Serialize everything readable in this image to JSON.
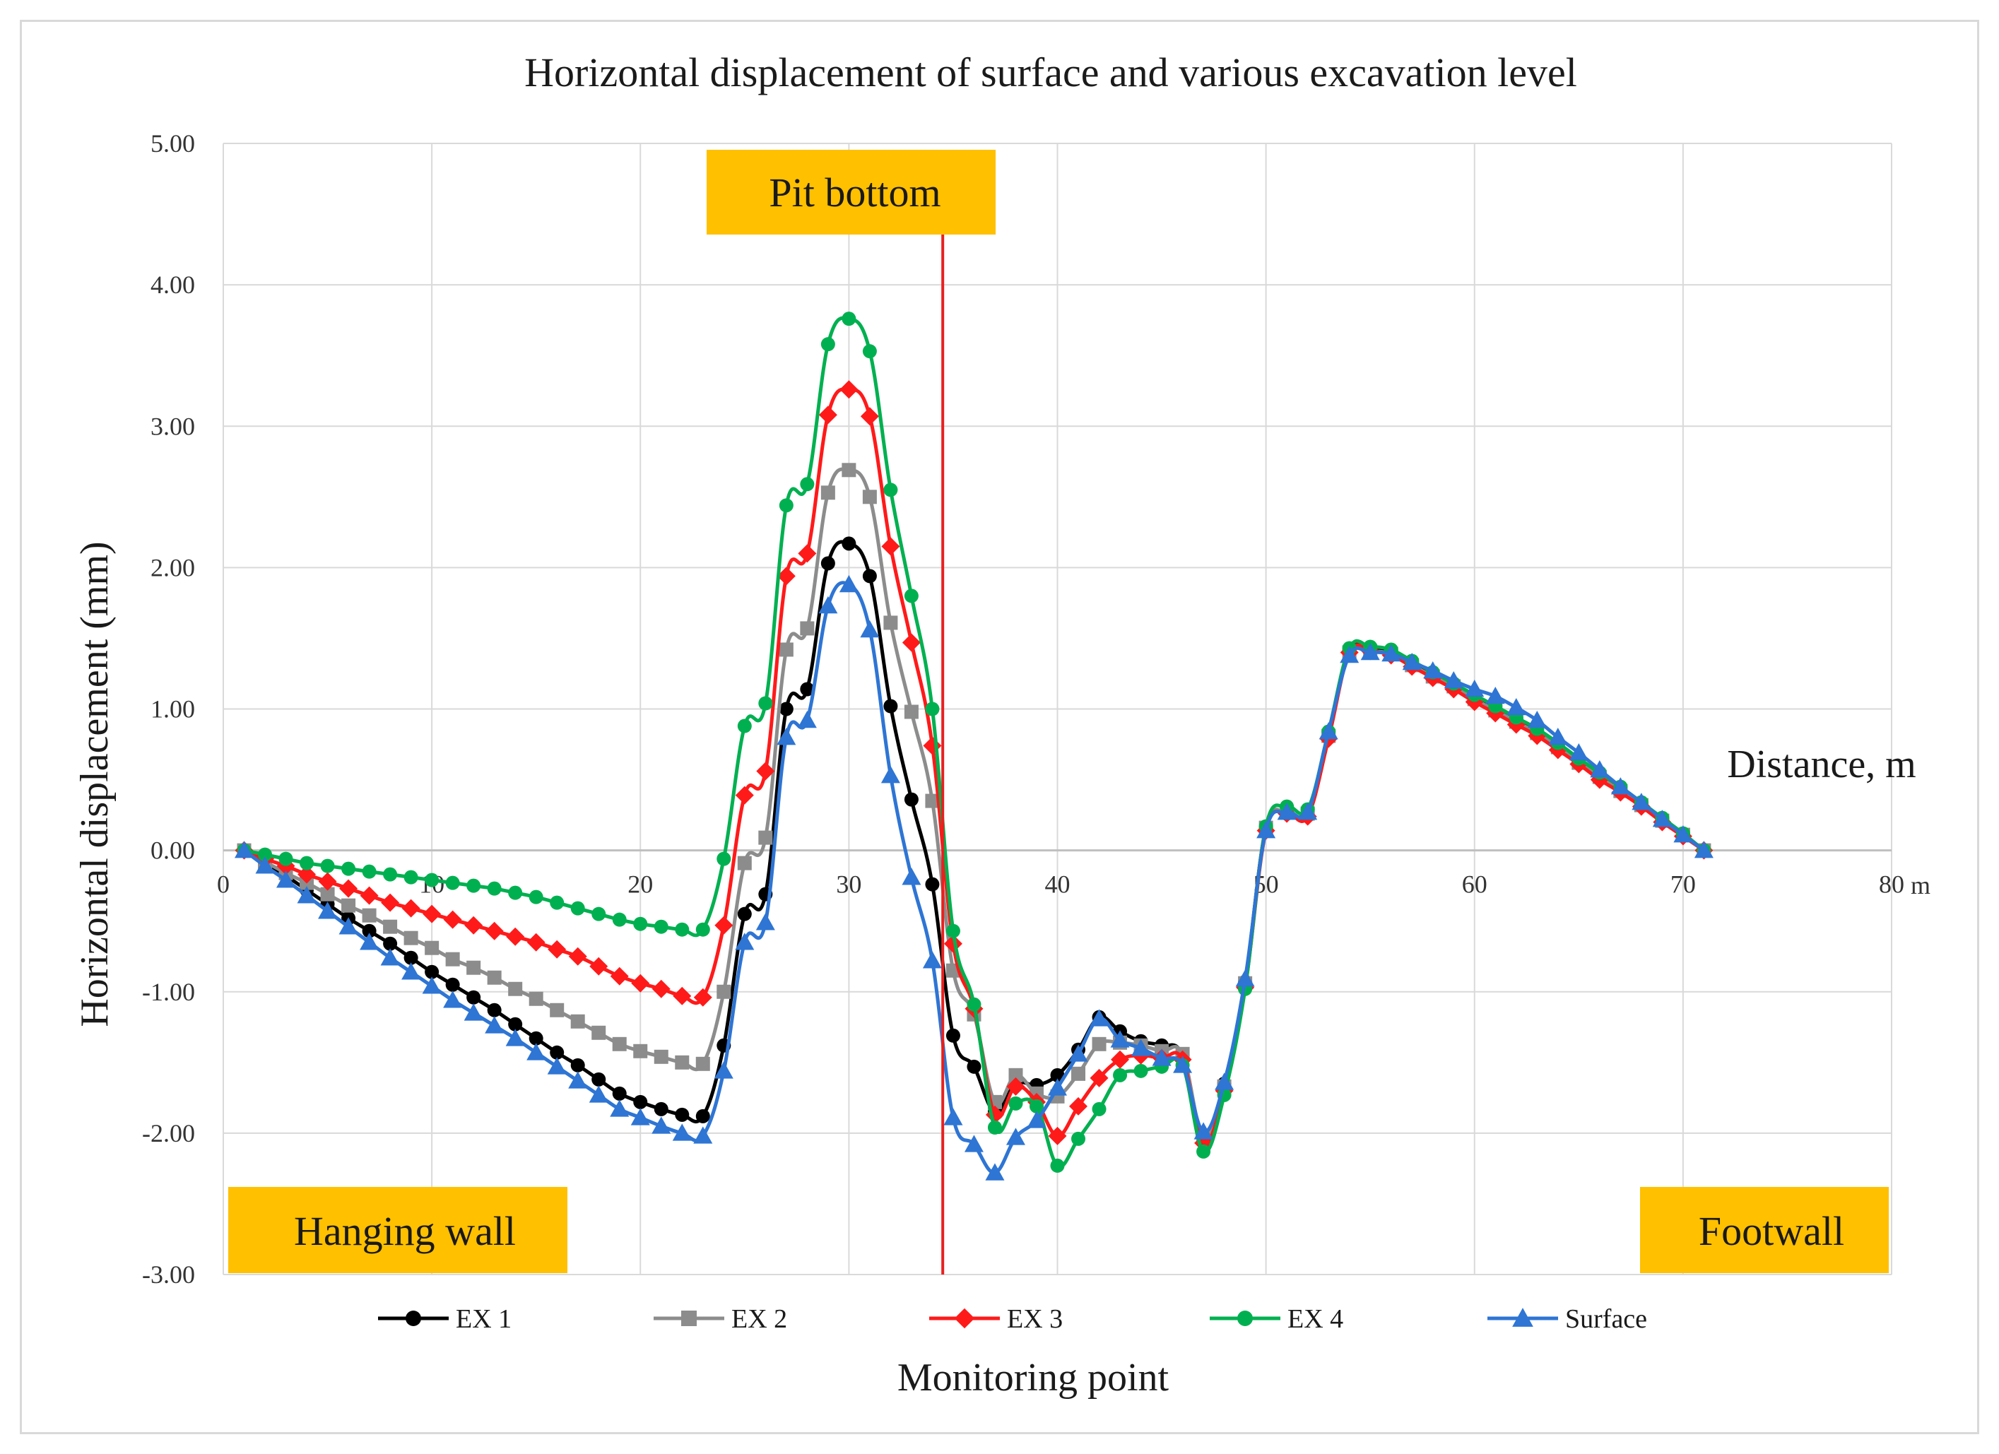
{
  "chart_data": {
    "type": "line",
    "title": "Horizontal displacement of surface and various excavation level",
    "xlabel": "Monitoring point",
    "ylabel": "Horizontal displacement (mm)",
    "x_axis_annotation": "Distance, m",
    "x_unit_label": "m",
    "xlim": [
      0,
      80
    ],
    "ylim": [
      -3,
      5
    ],
    "x_ticks": [
      0,
      10,
      20,
      30,
      40,
      50,
      60,
      70,
      80
    ],
    "x_tick_labels": [
      "0",
      "10",
      "20",
      "30",
      "40",
      "50",
      "60",
      "70",
      "80"
    ],
    "y_ticks": [
      5,
      4,
      3,
      2,
      1,
      0,
      -1,
      -2,
      -3
    ],
    "y_tick_labels": [
      "5.00",
      "4.00",
      "3.00",
      "2.00",
      "1.00",
      "0.00",
      "-1.00",
      "-2.00",
      "-3.00"
    ],
    "grid": true,
    "legend_position": "bottom",
    "annotations": {
      "pit_bottom": {
        "text": "Pit bottom",
        "x": 34.5,
        "line_color": "#e8211f",
        "box_color": "#ffc000"
      },
      "hanging_wall": {
        "text": "Hanging wall",
        "box_color": "#ffc000"
      },
      "footwall": {
        "text": "Footwall",
        "box_color": "#ffc000"
      }
    },
    "x": [
      1,
      2,
      3,
      4,
      5,
      6,
      7,
      8,
      9,
      10,
      11,
      12,
      13,
      14,
      15,
      16,
      17,
      18,
      19,
      20,
      21,
      22,
      23,
      24,
      25,
      26,
      27,
      28,
      29,
      30,
      31,
      32,
      33,
      34,
      35,
      36,
      37,
      38,
      39,
      40,
      41,
      42,
      43,
      44,
      45,
      46,
      47,
      48,
      49,
      50,
      51,
      52,
      53,
      54,
      55,
      56,
      57,
      58,
      59,
      60,
      61,
      62,
      63,
      64,
      65,
      66,
      67,
      68,
      69,
      70,
      71
    ],
    "series": [
      {
        "name": "EX 1",
        "color": "#000000",
        "marker": "circle",
        "values": [
          0.0,
          -0.09,
          -0.18,
          -0.28,
          -0.38,
          -0.48,
          -0.57,
          -0.66,
          -0.76,
          -0.86,
          -0.95,
          -1.04,
          -1.13,
          -1.23,
          -1.33,
          -1.43,
          -1.52,
          -1.62,
          -1.72,
          -1.78,
          -1.83,
          -1.87,
          -1.88,
          -1.38,
          -0.45,
          -0.31,
          1.0,
          1.14,
          2.03,
          2.17,
          1.94,
          1.02,
          0.36,
          -0.24,
          -1.31,
          -1.53,
          -1.85,
          -1.65,
          -1.66,
          -1.59,
          -1.41,
          -1.18,
          -1.28,
          -1.35,
          -1.38,
          -1.45,
          -2.06,
          -1.65,
          -0.93,
          0.16,
          0.26,
          0.25,
          0.81,
          1.42,
          1.43,
          1.41,
          1.33,
          1.25,
          1.17,
          1.09,
          1.0,
          0.93,
          0.84,
          0.74,
          0.63,
          0.53,
          0.43,
          0.33,
          0.22,
          0.11,
          0.0
        ]
      },
      {
        "name": "EX 2",
        "color": "#8c8c8c",
        "marker": "square",
        "values": [
          0.0,
          -0.08,
          -0.16,
          -0.23,
          -0.31,
          -0.39,
          -0.46,
          -0.54,
          -0.62,
          -0.69,
          -0.77,
          -0.83,
          -0.9,
          -0.98,
          -1.05,
          -1.13,
          -1.21,
          -1.29,
          -1.37,
          -1.42,
          -1.46,
          -1.5,
          -1.51,
          -1.0,
          -0.09,
          0.09,
          1.42,
          1.57,
          2.53,
          2.69,
          2.5,
          1.61,
          0.98,
          0.35,
          -0.85,
          -1.16,
          -1.78,
          -1.59,
          -1.72,
          -1.74,
          -1.58,
          -1.37,
          -1.36,
          -1.38,
          -1.42,
          -1.44,
          -2.03,
          -1.67,
          -0.94,
          0.16,
          0.27,
          0.26,
          0.81,
          1.4,
          1.41,
          1.39,
          1.31,
          1.23,
          1.16,
          1.07,
          0.99,
          0.91,
          0.83,
          0.73,
          0.62,
          0.52,
          0.42,
          0.32,
          0.21,
          0.11,
          0.0
        ]
      },
      {
        "name": "EX 3",
        "color": "#ff1a1a",
        "marker": "diamond",
        "values": [
          0.0,
          -0.06,
          -0.11,
          -0.17,
          -0.22,
          -0.27,
          -0.32,
          -0.37,
          -0.41,
          -0.45,
          -0.49,
          -0.53,
          -0.57,
          -0.61,
          -0.65,
          -0.7,
          -0.75,
          -0.82,
          -0.89,
          -0.94,
          -0.98,
          -1.03,
          -1.04,
          -0.53,
          0.39,
          0.56,
          1.94,
          2.1,
          3.08,
          3.26,
          3.07,
          2.15,
          1.47,
          0.74,
          -0.66,
          -1.12,
          -1.87,
          -1.67,
          -1.78,
          -2.02,
          -1.81,
          -1.61,
          -1.48,
          -1.45,
          -1.47,
          -1.48,
          -2.07,
          -1.7,
          -0.97,
          0.14,
          0.26,
          0.24,
          0.79,
          1.4,
          1.41,
          1.38,
          1.3,
          1.22,
          1.14,
          1.05,
          0.97,
          0.89,
          0.81,
          0.71,
          0.61,
          0.5,
          0.41,
          0.31,
          0.2,
          0.1,
          0.0
        ]
      },
      {
        "name": "EX 4",
        "color": "#00b050",
        "marker": "circle",
        "values": [
          0.0,
          -0.03,
          -0.06,
          -0.09,
          -0.11,
          -0.13,
          -0.15,
          -0.17,
          -0.19,
          -0.21,
          -0.23,
          -0.25,
          -0.27,
          -0.3,
          -0.33,
          -0.37,
          -0.41,
          -0.45,
          -0.49,
          -0.52,
          -0.54,
          -0.56,
          -0.56,
          -0.06,
          0.88,
          1.04,
          2.44,
          2.59,
          3.58,
          3.76,
          3.53,
          2.55,
          1.8,
          1.0,
          -0.57,
          -1.09,
          -1.96,
          -1.79,
          -1.81,
          -2.23,
          -2.04,
          -1.83,
          -1.59,
          -1.56,
          -1.53,
          -1.52,
          -2.13,
          -1.73,
          -0.98,
          0.17,
          0.31,
          0.29,
          0.84,
          1.43,
          1.44,
          1.42,
          1.34,
          1.26,
          1.18,
          1.1,
          1.02,
          0.94,
          0.86,
          0.76,
          0.65,
          0.55,
          0.45,
          0.34,
          0.23,
          0.12,
          0.0
        ]
      },
      {
        "name": "Surface",
        "color": "#2e75d4",
        "marker": "triangle",
        "values": [
          0.0,
          -0.11,
          -0.21,
          -0.32,
          -0.43,
          -0.54,
          -0.65,
          -0.76,
          -0.86,
          -0.96,
          -1.06,
          -1.15,
          -1.24,
          -1.33,
          -1.43,
          -1.53,
          -1.63,
          -1.73,
          -1.83,
          -1.89,
          -1.95,
          -2.0,
          -2.02,
          -1.56,
          -0.65,
          -0.51,
          0.8,
          0.92,
          1.73,
          1.88,
          1.56,
          0.53,
          -0.19,
          -0.78,
          -1.89,
          -2.08,
          -2.28,
          -2.03,
          -1.91,
          -1.68,
          -1.44,
          -1.19,
          -1.34,
          -1.4,
          -1.47,
          -1.52,
          -1.99,
          -1.64,
          -0.91,
          0.14,
          0.27,
          0.27,
          0.84,
          1.38,
          1.4,
          1.39,
          1.33,
          1.27,
          1.2,
          1.14,
          1.09,
          1.01,
          0.92,
          0.8,
          0.69,
          0.57,
          0.45,
          0.34,
          0.22,
          0.11,
          0.0
        ]
      }
    ]
  }
}
